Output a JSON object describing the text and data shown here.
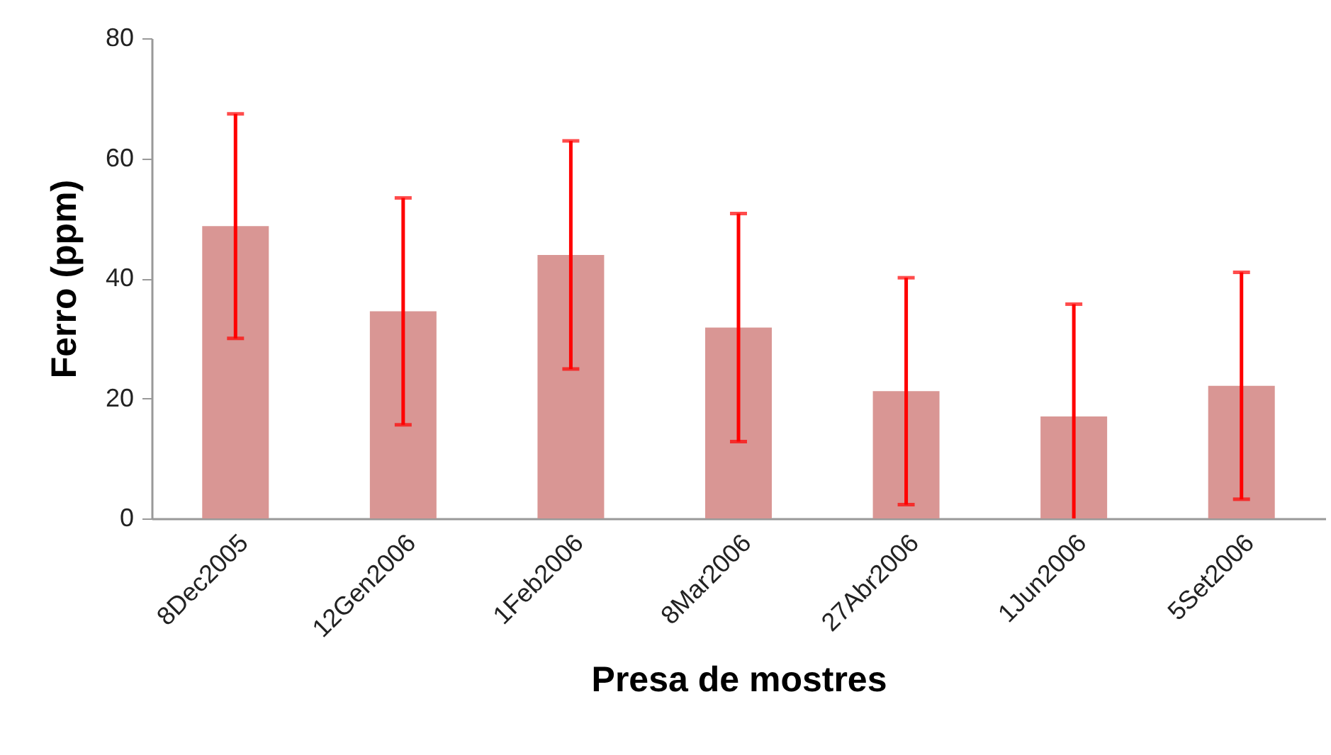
{
  "chart_data": {
    "type": "bar",
    "xlabel": "Presa de mostres",
    "ylabel": "Ferro (ppm)",
    "categories": [
      "8Dec2005",
      "12Gen2006",
      "1Feb2006",
      "8Mar2006",
      "27Abr2006",
      "1Jun2006",
      "5Set2006"
    ],
    "values": [
      48.7,
      34.5,
      43.9,
      31.8,
      21.2,
      17.0,
      22.1
    ],
    "errors": [
      18.7,
      18.9,
      19.0,
      19.0,
      18.9,
      [
        0,
        35.7
      ],
      18.9
    ],
    "color": "#d99694",
    "ylim": [
      0,
      80
    ],
    "yticks": [
      0,
      20,
      40,
      60,
      80
    ],
    "grid": false
  }
}
